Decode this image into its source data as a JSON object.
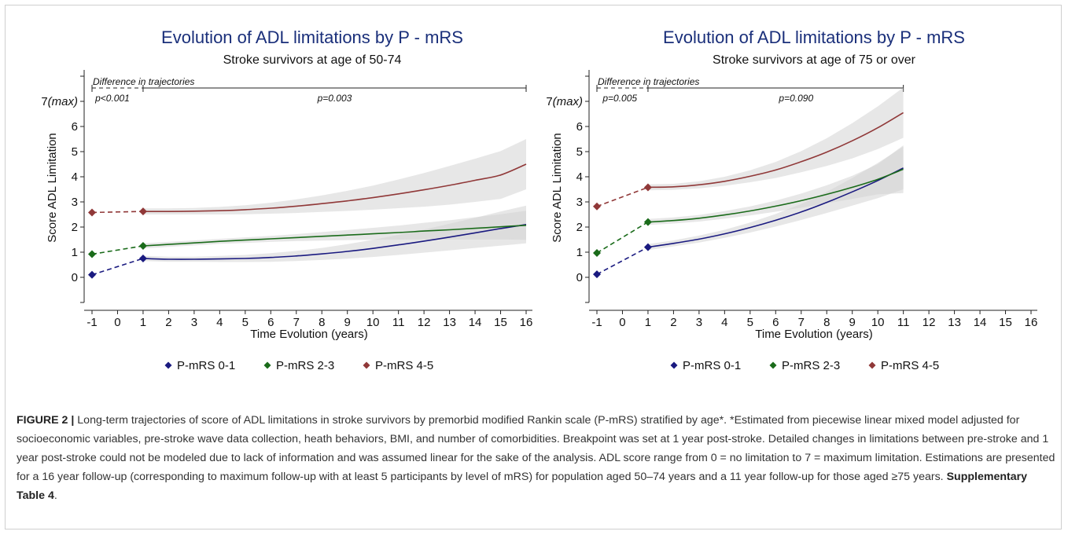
{
  "figure_label": "FIGURE 2 |",
  "caption_text": " Long-term trajectories of score of ADL limitations in stroke survivors by premorbid modified Rankin scale (P-mRS) stratified by age*. *Estimated from piecewise linear mixed model adjusted for socioeconomic variables, pre-stroke wave data collection, heath behaviors, BMI, and number of comorbidities. Breakpoint was set at 1 year post-stroke. Detailed changes in limitations between pre-stroke and 1 year post-stroke could not be modeled due to lack of information and was assumed linear for the sake of the analysis. ADL score range from 0 = no limitation to 7 = maximum limitation. Estimations are presented for a 16 year follow-up (corresponding to maximum follow-up with at least 5 participants by level of mRS) for population aged 50–74 years and a 11 year follow-up for those aged ≥75 years. ",
  "caption_link": "Supplementary Table 4",
  "caption_end": ".",
  "colors": {
    "mrs01": "#1a1a80",
    "mrs23": "#1a6b1a",
    "mrs45": "#903838",
    "title": "#1a2f7a",
    "band": "#d3d3d3"
  },
  "chart_data": [
    {
      "type": "line",
      "title": "Evolution of ADL limitations by P - mRS",
      "subtitle": "Stroke survivors at age of 50-74",
      "xlabel": "Time Evolution (years)",
      "ylabel": "Score ADL Limitation",
      "xticks": [
        "-1",
        "0",
        "1",
        "2",
        "3",
        "4",
        "5",
        "6",
        "7",
        "8",
        "9",
        "10",
        "11",
        "12",
        "13",
        "14",
        "15",
        "16"
      ],
      "yticks": [
        "0",
        "1",
        "2",
        "3",
        "4",
        "5",
        "6",
        "7(max)"
      ],
      "xlim": [
        -1,
        16
      ],
      "ylim": [
        -1,
        8
      ],
      "bracket_label": "Difference in trajectories",
      "bracket_end": 16,
      "p_values": [
        {
          "text": "p<0.001",
          "x": -0.2
        },
        {
          "text": "p=0.003",
          "x": 8.5
        }
      ],
      "series": [
        {
          "name": "P-mRS 0-1",
          "key": "mrs01",
          "dashed": [
            [
              -1,
              0.1
            ],
            [
              1,
              0.75
            ]
          ],
          "curve": [
            [
              1,
              0.75
            ],
            [
              2,
              0.72
            ],
            [
              3,
              0.72
            ],
            [
              4,
              0.73
            ],
            [
              5,
              0.75
            ],
            [
              6,
              0.79
            ],
            [
              7,
              0.85
            ],
            [
              8,
              0.93
            ],
            [
              9,
              1.03
            ],
            [
              10,
              1.15
            ],
            [
              11,
              1.29
            ],
            [
              12,
              1.44
            ],
            [
              13,
              1.6
            ],
            [
              14,
              1.77
            ],
            [
              15,
              1.94
            ],
            [
              16,
              2.1
            ]
          ],
          "band": [
            [
              1,
              0.1
            ],
            [
              2,
              0.1
            ],
            [
              3,
              0.1
            ],
            [
              4,
              0.12
            ],
            [
              5,
              0.14
            ],
            [
              6,
              0.17
            ],
            [
              7,
              0.2
            ],
            [
              8,
              0.24
            ],
            [
              9,
              0.29
            ],
            [
              10,
              0.34
            ],
            [
              11,
              0.4
            ],
            [
              12,
              0.46
            ],
            [
              13,
              0.53
            ],
            [
              14,
              0.6
            ],
            [
              15,
              0.68
            ],
            [
              16,
              0.75
            ]
          ]
        },
        {
          "name": "P-mRS 2-3",
          "key": "mrs23",
          "dashed": [
            [
              -1,
              0.92
            ],
            [
              1,
              1.25
            ]
          ],
          "curve": [
            [
              1,
              1.25
            ],
            [
              2,
              1.31
            ],
            [
              3,
              1.37
            ],
            [
              4,
              1.43
            ],
            [
              5,
              1.48
            ],
            [
              6,
              1.53
            ],
            [
              7,
              1.58
            ],
            [
              8,
              1.63
            ],
            [
              9,
              1.68
            ],
            [
              10,
              1.73
            ],
            [
              11,
              1.78
            ],
            [
              12,
              1.84
            ],
            [
              13,
              1.89
            ],
            [
              14,
              1.95
            ],
            [
              15,
              2.01
            ],
            [
              16,
              2.07
            ]
          ],
          "band": [
            [
              1,
              0.1
            ],
            [
              2,
              0.1
            ],
            [
              3,
              0.1
            ],
            [
              4,
              0.1
            ],
            [
              5,
              0.11
            ],
            [
              6,
              0.12
            ],
            [
              7,
              0.14
            ],
            [
              8,
              0.17
            ],
            [
              9,
              0.2
            ],
            [
              10,
              0.24
            ],
            [
              11,
              0.28
            ],
            [
              12,
              0.33
            ],
            [
              13,
              0.38
            ],
            [
              14,
              0.44
            ],
            [
              15,
              0.5
            ],
            [
              16,
              0.58
            ]
          ]
        },
        {
          "name": "P-mRS 4-5",
          "key": "mrs45",
          "dashed": [
            [
              -1,
              2.58
            ],
            [
              1,
              2.62
            ]
          ],
          "curve": [
            [
              1,
              2.62
            ],
            [
              2,
              2.62
            ],
            [
              3,
              2.63
            ],
            [
              4,
              2.65
            ],
            [
              5,
              2.69
            ],
            [
              6,
              2.75
            ],
            [
              7,
              2.83
            ],
            [
              8,
              2.93
            ],
            [
              9,
              3.04
            ],
            [
              10,
              3.17
            ],
            [
              11,
              3.32
            ],
            [
              12,
              3.48
            ],
            [
              13,
              3.66
            ],
            [
              14,
              3.86
            ],
            [
              15,
              4.07
            ],
            [
              16,
              4.5
            ]
          ],
          "band": [
            [
              1,
              0.12
            ],
            [
              2,
              0.12
            ],
            [
              3,
              0.13
            ],
            [
              4,
              0.15
            ],
            [
              5,
              0.18
            ],
            [
              6,
              0.22
            ],
            [
              7,
              0.27
            ],
            [
              8,
              0.33
            ],
            [
              9,
              0.4
            ],
            [
              10,
              0.48
            ],
            [
              11,
              0.57
            ],
            [
              12,
              0.67
            ],
            [
              13,
              0.77
            ],
            [
              14,
              0.86
            ],
            [
              15,
              0.95
            ],
            [
              16,
              1.0
            ]
          ]
        }
      ],
      "legend": "bottom"
    },
    {
      "type": "line",
      "title": "Evolution of ADL limitations by P - mRS",
      "subtitle": "Stroke survivors at age of 75 or over",
      "xlabel": "Time Evolution (years)",
      "ylabel": "Score ADL Limitation",
      "xticks": [
        "-1",
        "0",
        "1",
        "2",
        "3",
        "4",
        "5",
        "6",
        "7",
        "8",
        "9",
        "10",
        "11",
        "12",
        "13",
        "14",
        "15",
        "16"
      ],
      "yticks": [
        "0",
        "1",
        "2",
        "3",
        "4",
        "5",
        "6",
        "7(max)"
      ],
      "xlim": [
        -1,
        16
      ],
      "ylim": [
        -1,
        8
      ],
      "bracket_label": "Difference in trajectories",
      "bracket_end": 11,
      "p_values": [
        {
          "text": "p=0.005",
          "x": -0.1
        },
        {
          "text": "p=0.090",
          "x": 6.8
        }
      ],
      "series": [
        {
          "name": "P-mRS 0-1",
          "key": "mrs01",
          "dashed": [
            [
              -1,
              0.12
            ],
            [
              1,
              1.2
            ]
          ],
          "curve": [
            [
              1,
              1.2
            ],
            [
              2,
              1.35
            ],
            [
              3,
              1.52
            ],
            [
              4,
              1.73
            ],
            [
              5,
              1.98
            ],
            [
              6,
              2.27
            ],
            [
              7,
              2.6
            ],
            [
              8,
              2.98
            ],
            [
              9,
              3.4
            ],
            [
              10,
              3.85
            ],
            [
              11,
              4.35
            ]
          ],
          "band": [
            [
              1,
              0.12
            ],
            [
              2,
              0.12
            ],
            [
              3,
              0.14
            ],
            [
              4,
              0.16
            ],
            [
              5,
              0.2
            ],
            [
              6,
              0.25
            ],
            [
              7,
              0.32
            ],
            [
              8,
              0.42
            ],
            [
              9,
              0.55
            ],
            [
              10,
              0.7
            ],
            [
              11,
              0.85
            ]
          ]
        },
        {
          "name": "P-mRS 2-3",
          "key": "mrs23",
          "dashed": [
            [
              -1,
              0.97
            ],
            [
              1,
              2.2
            ]
          ],
          "curve": [
            [
              1,
              2.2
            ],
            [
              2,
              2.26
            ],
            [
              3,
              2.35
            ],
            [
              4,
              2.48
            ],
            [
              5,
              2.64
            ],
            [
              6,
              2.83
            ],
            [
              7,
              3.05
            ],
            [
              8,
              3.3
            ],
            [
              9,
              3.58
            ],
            [
              10,
              3.9
            ],
            [
              11,
              4.3
            ]
          ],
          "band": [
            [
              1,
              0.12
            ],
            [
              2,
              0.12
            ],
            [
              3,
              0.13
            ],
            [
              4,
              0.15
            ],
            [
              5,
              0.18
            ],
            [
              6,
              0.22
            ],
            [
              7,
              0.28
            ],
            [
              8,
              0.36
            ],
            [
              9,
              0.46
            ],
            [
              10,
              0.6
            ],
            [
              11,
              0.95
            ]
          ]
        },
        {
          "name": "P-mRS 4-5",
          "key": "mrs45",
          "dashed": [
            [
              -1,
              2.82
            ],
            [
              1,
              3.58
            ]
          ],
          "curve": [
            [
              1,
              3.58
            ],
            [
              2,
              3.6
            ],
            [
              3,
              3.68
            ],
            [
              4,
              3.82
            ],
            [
              5,
              4.02
            ],
            [
              6,
              4.27
            ],
            [
              7,
              4.6
            ],
            [
              8,
              4.98
            ],
            [
              9,
              5.43
            ],
            [
              10,
              5.95
            ],
            [
              11,
              6.55
            ]
          ],
          "band": [
            [
              1,
              0.12
            ],
            [
              2,
              0.12
            ],
            [
              3,
              0.14
            ],
            [
              4,
              0.18
            ],
            [
              5,
              0.24
            ],
            [
              6,
              0.32
            ],
            [
              7,
              0.42
            ],
            [
              8,
              0.55
            ],
            [
              9,
              0.7
            ],
            [
              10,
              0.85
            ],
            [
              11,
              1.0
            ]
          ]
        }
      ],
      "legend": "bottom"
    }
  ]
}
